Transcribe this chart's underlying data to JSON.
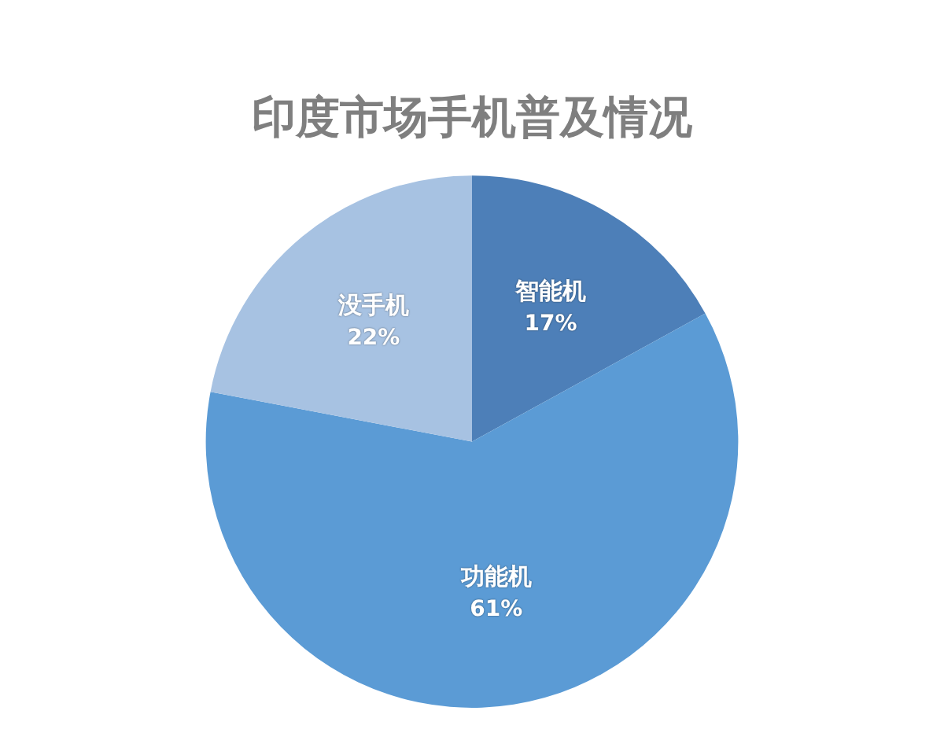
{
  "chart_data": {
    "type": "pie",
    "title": "印度市场手机普及情况",
    "categories": [
      "智能机",
      "功能机",
      "没手机"
    ],
    "values": [
      17,
      61,
      22
    ],
    "colors": [
      "#4d7fb8",
      "#5b9bd5",
      "#a7c2e2"
    ],
    "value_labels": [
      "17%",
      "61%",
      "22%"
    ]
  }
}
